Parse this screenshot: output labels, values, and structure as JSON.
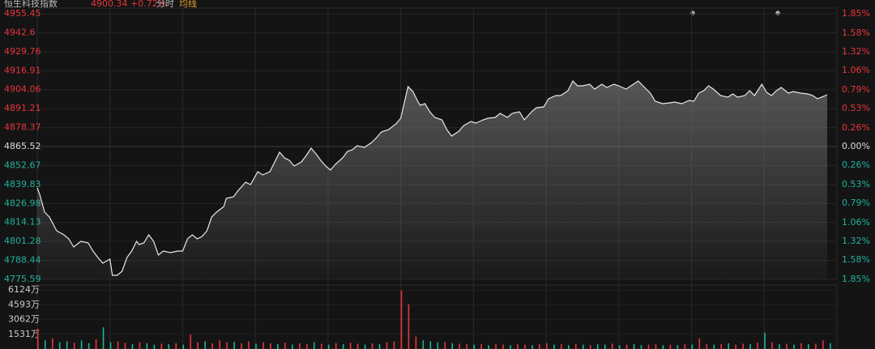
{
  "header": {
    "name": "恒生科技指数",
    "quote": "4900.34 +0.72%",
    "mode": "分时",
    "ma": "均线"
  },
  "chart_data": [
    {
      "type": "line",
      "color": "#e8e8e8",
      "grid": true,
      "x": [
        0,
        1,
        3,
        5,
        8,
        11,
        13,
        15,
        18,
        21,
        23,
        25,
        27,
        30,
        31,
        33,
        35,
        37,
        39,
        41,
        42,
        44,
        46,
        48,
        50,
        52,
        55,
        58,
        60,
        62,
        64,
        66,
        68,
        70,
        72,
        74,
        77,
        78,
        81,
        83,
        86,
        88,
        91,
        93,
        96,
        98,
        100,
        102,
        104,
        106,
        109,
        111,
        113,
        115,
        117,
        119,
        121,
        123,
        126,
        128,
        130,
        132,
        135,
        138,
        140,
        142,
        145,
        148,
        150,
        152,
        153,
        155,
        157,
        158,
        160,
        162,
        164,
        167,
        169,
        171,
        174,
        176,
        179,
        181,
        184,
        186,
        189,
        191,
        194,
        196,
        199,
        201,
        204,
        206,
        209,
        211,
        214,
        216,
        219,
        221,
        223,
        225,
        228,
        230,
        233,
        235,
        238,
        240,
        243,
        245,
        248,
        250,
        253,
        255,
        258,
        261,
        263,
        266,
        269,
        271,
        273,
        275,
        277,
        279,
        282,
        285,
        287,
        289,
        292,
        294,
        296,
        299,
        301,
        303,
        305,
        307,
        310,
        312,
        315,
        318,
        320,
        322,
        326
      ],
      "values": [
        4837.55,
        4833.17,
        4821.1,
        4817.81,
        4808.49,
        4805.75,
        4803.01,
        4797.52,
        4801.36,
        4800.26,
        4794.78,
        4790.39,
        4786.56,
        4789.3,
        4778.33,
        4778.33,
        4781.07,
        4790.39,
        4794.78,
        4801.36,
        4799.17,
        4800.26,
        4805.75,
        4801.36,
        4792.04,
        4794.78,
        4793.68,
        4794.78,
        4794.78,
        4803.01,
        4805.75,
        4803.01,
        4804.65,
        4808.49,
        4817.81,
        4821.1,
        4824.94,
        4830.42,
        4831.52,
        4835.91,
        4841.39,
        4839.75,
        4848.52,
        4846.33,
        4848.52,
        4855.1,
        4861.68,
        4857.84,
        4856.2,
        4852.36,
        4855.1,
        4859.49,
        4864.42,
        4860.58,
        4856.2,
        4852.36,
        4849.62,
        4853.45,
        4857.84,
        4862.23,
        4863.33,
        4866.07,
        4864.97,
        4868.26,
        4871.55,
        4875.39,
        4877.03,
        4880.87,
        4884.71,
        4898.97,
        4906.1,
        4902.81,
        4896.23,
        4893.48,
        4894.58,
        4889.1,
        4885.26,
        4883.61,
        4877.03,
        4872.65,
        4875.94,
        4879.77,
        4882.52,
        4881.42,
        4883.61,
        4884.71,
        4885.26,
        4888.0,
        4885.26,
        4888.0,
        4889.1,
        4883.61,
        4889.1,
        4891.84,
        4892.39,
        4897.87,
        4900.06,
        4900.06,
        4903.35,
        4909.93,
        4906.64,
        4906.64,
        4907.74,
        4904.45,
        4907.74,
        4905.55,
        4907.74,
        4906.64,
        4904.45,
        4906.64,
        4909.93,
        4906.64,
        4901.71,
        4896.23,
        4894.58,
        4895.13,
        4895.68,
        4894.58,
        4896.77,
        4896.23,
        4901.71,
        4903.35,
        4906.64,
        4904.45,
        4900.06,
        4898.97,
        4901.16,
        4898.97,
        4900.06,
        4903.35,
        4900.06,
        4907.74,
        4902.26,
        4900.06,
        4903.35,
        4905.55,
        4901.71,
        4902.81,
        4901.71,
        4901.16,
        4900.06,
        4897.87,
        4900.61
      ],
      "xlim": [
        0,
        330
      ],
      "xticks": [
        30,
        60,
        90,
        120,
        150,
        180,
        210,
        240,
        270,
        300
      ],
      "ylim": [
        4775.59,
        4955.45
      ],
      "yticks": [
        4955.45,
        4942.6,
        {
          "value": 4929.76,
          "label": "4929.76"
        },
        4916.91,
        4904.06,
        4891.21,
        4878.37,
        4865.52,
        4852.67,
        4839.83,
        4826.98,
        4814.13,
        4801.28,
        4788.44,
        4775.59
      ],
      "y2lim": [
        -1.85,
        1.85
      ],
      "y2ticks": [
        {
          "value": 1.85,
          "label": "1.85%"
        },
        {
          "value": 1.58,
          "label": "1.58%"
        },
        {
          "value": 1.32,
          "label": "1.32%"
        },
        {
          "value": 1.06,
          "label": "1.06%"
        },
        {
          "value": 0.79,
          "label": "0.79%"
        },
        {
          "value": 0.53,
          "label": "0.53%"
        },
        {
          "value": 0.26,
          "label": "0.26%"
        },
        {
          "value": 0,
          "label": "0.00%"
        },
        {
          "value": -0.26,
          "label": "0.26%"
        },
        {
          "value": -0.53,
          "label": "0.53%"
        },
        {
          "value": -0.79,
          "label": "0.79%"
        },
        {
          "value": -1.06,
          "label": "1.06%"
        },
        {
          "value": -1.32,
          "label": "1.32%"
        },
        {
          "value": -1.58,
          "label": "1.58%"
        },
        {
          "value": -1.85,
          "label": "1.85%"
        }
      ],
      "up_color": "#e8343c",
      "down_color": "#1fb39c",
      "flat_color": "#dddddd"
    },
    {
      "type": "bar",
      "x": [
        0,
        3,
        6,
        9,
        12,
        15,
        18,
        21,
        24,
        27,
        30,
        33,
        36,
        39,
        42,
        45,
        48,
        51,
        54,
        57,
        60,
        63,
        66,
        69,
        72,
        75,
        78,
        81,
        84,
        87,
        90,
        93,
        96,
        99,
        102,
        105,
        108,
        111,
        114,
        117,
        120,
        123,
        126,
        129,
        132,
        135,
        138,
        141,
        144,
        147,
        150,
        153,
        156,
        159,
        162,
        165,
        168,
        171,
        174,
        177,
        180,
        183,
        186,
        189,
        192,
        195,
        198,
        201,
        204,
        207,
        210,
        213,
        216,
        219,
        222,
        225,
        228,
        231,
        234,
        237,
        240,
        243,
        246,
        249,
        252,
        255,
        258,
        261,
        264,
        267,
        270,
        273,
        276,
        279,
        282,
        285,
        288,
        291,
        294,
        297,
        300,
        303,
        306,
        309,
        312,
        315,
        318,
        321,
        324,
        327
      ],
      "values": [
        2100,
        900,
        1100,
        700,
        800,
        650,
        900,
        600,
        1000,
        2250,
        700,
        800,
        650,
        500,
        700,
        600,
        450,
        550,
        500,
        600,
        450,
        1500,
        700,
        800,
        600,
        900,
        700,
        750,
        600,
        800,
        550,
        700,
        600,
        500,
        650,
        450,
        600,
        500,
        700,
        550,
        450,
        600,
        500,
        650,
        550,
        450,
        600,
        500,
        700,
        800,
        6080,
        4650,
        1300,
        900,
        800,
        700,
        750,
        600,
        550,
        500,
        450,
        500,
        400,
        550,
        450,
        400,
        500,
        450,
        400,
        500,
        600,
        450,
        500,
        400,
        550,
        450,
        400,
        500,
        450,
        550,
        400,
        450,
        500,
        400,
        450,
        500,
        400,
        450,
        400,
        500,
        450,
        1100,
        500,
        450,
        500,
        600,
        450,
        550,
        500,
        650,
        1700,
        700,
        500,
        550,
        450,
        600,
        500,
        550,
        900,
        600
      ],
      "colors": [
        "#e8343c",
        "#1fb39c",
        "#e8343c",
        "#1fb39c",
        "#1fb39c",
        "#e8343c",
        "#1fb39c",
        "#1fb39c",
        "#e8343c",
        "#1fb39c",
        "#1fb39c",
        "#e8343c",
        "#e8343c",
        "#1fb39c",
        "#e8343c",
        "#1fb39c",
        "#1fb39c",
        "#e8343c",
        "#1fb39c",
        "#e8343c",
        "#1fb39c",
        "#e8343c",
        "#e8343c",
        "#1fb39c",
        "#e8343c",
        "#e8343c",
        "#e8343c",
        "#1fb39c",
        "#e8343c",
        "#e8343c",
        "#1fb39c",
        "#e8343c",
        "#e8343c",
        "#1fb39c",
        "#e8343c",
        "#1fb39c",
        "#e8343c",
        "#e8343c",
        "#1fb39c",
        "#e8343c",
        "#1fb39c",
        "#e8343c",
        "#1fb39c",
        "#e8343c",
        "#e8343c",
        "#1fb39c",
        "#e8343c",
        "#1fb39c",
        "#e8343c",
        "#e8343c",
        "#e8343c",
        "#e8343c",
        "#e8343c",
        "#1fb39c",
        "#1fb39c",
        "#1fb39c",
        "#e8343c",
        "#1fb39c",
        "#e8343c",
        "#e8343c",
        "#1fb39c",
        "#e8343c",
        "#1fb39c",
        "#e8343c",
        "#e8343c",
        "#1fb39c",
        "#e8343c",
        "#e8343c",
        "#1fb39c",
        "#e8343c",
        "#e8343c",
        "#1fb39c",
        "#e8343c",
        "#1fb39c",
        "#e8343c",
        "#1fb39c",
        "#e8343c",
        "#1fb39c",
        "#1fb39c",
        "#e8343c",
        "#1fb39c",
        "#e8343c",
        "#1fb39c",
        "#1fb39c",
        "#e8343c",
        "#e8343c",
        "#1fb39c",
        "#e8343c",
        "#1fb39c",
        "#e8343c",
        "#1fb39c",
        "#e8343c",
        "#e8343c",
        "#1fb39c",
        "#e8343c",
        "#1fb39c",
        "#e8343c",
        "#e8343c",
        "#1fb39c",
        "#e8343c",
        "#1fb39c",
        "#e8343c",
        "#1fb39c",
        "#e8343c",
        "#1fb39c",
        "#e8343c",
        "#1fb39c",
        "#e8343c",
        "#e8343c",
        "#1fb39c"
      ],
      "xlim": [
        0,
        330
      ],
      "ylim": [
        0,
        6640
      ],
      "yticks": [
        {
          "value": 6124,
          "label": "6124万"
        },
        {
          "value": 4593,
          "label": "4593万"
        },
        {
          "value": 3062,
          "label": "3062万"
        },
        {
          "value": 1531,
          "label": "1531万"
        }
      ]
    }
  ]
}
